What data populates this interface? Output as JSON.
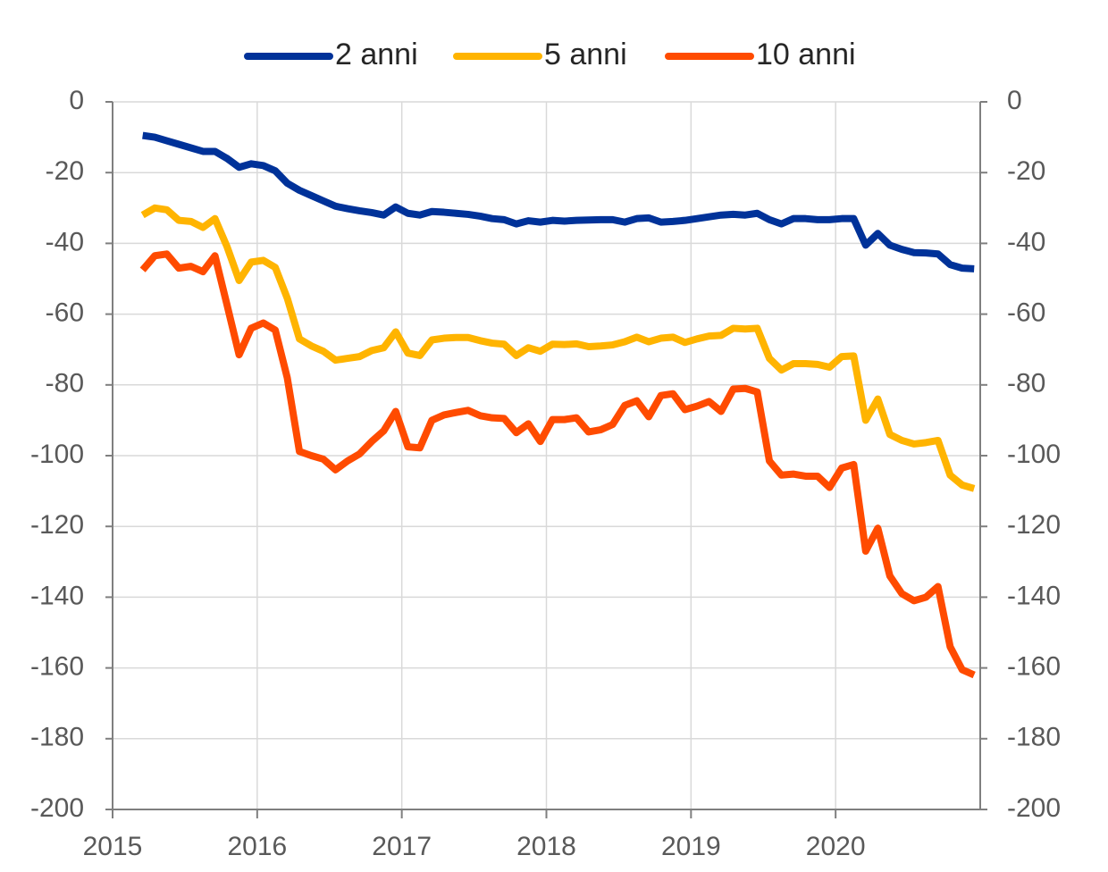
{
  "chart_data": {
    "type": "line",
    "x": [
      2015.208,
      2015.292,
      2015.375,
      2015.458,
      2015.542,
      2015.625,
      2015.708,
      2015.792,
      2015.875,
      2015.958,
      2016.042,
      2016.125,
      2016.208,
      2016.292,
      2016.375,
      2016.458,
      2016.542,
      2016.625,
      2016.708,
      2016.792,
      2016.875,
      2016.958,
      2017.042,
      2017.125,
      2017.208,
      2017.292,
      2017.375,
      2017.458,
      2017.542,
      2017.625,
      2017.708,
      2017.792,
      2017.875,
      2017.958,
      2018.042,
      2018.125,
      2018.208,
      2018.292,
      2018.375,
      2018.458,
      2018.542,
      2018.625,
      2018.708,
      2018.792,
      2018.875,
      2018.958,
      2019.042,
      2019.125,
      2019.208,
      2019.292,
      2019.375,
      2019.458,
      2019.542,
      2019.625,
      2019.708,
      2019.792,
      2019.875,
      2019.958,
      2020.042,
      2020.125,
      2020.208,
      2020.292,
      2020.375,
      2020.458,
      2020.542,
      2020.625,
      2020.708,
      2020.792,
      2020.875,
      2020.958
    ],
    "series": [
      {
        "name": "2 anni",
        "color": "#003299",
        "values": [
          -9.5,
          -10,
          -11,
          -12,
          -13,
          -14,
          -14,
          -16,
          -18.5,
          -17.5,
          -18,
          -19.5,
          -23,
          -25,
          -26.5,
          -28,
          -29.5,
          -30.2,
          -30.8,
          -31.3,
          -32,
          -29.7,
          -31.5,
          -32,
          -31,
          -31.2,
          -31.5,
          -31.8,
          -32.3,
          -33,
          -33.3,
          -34.5,
          -33.6,
          -34,
          -33.5,
          -33.7,
          -33.5,
          -33.4,
          -33.3,
          -33.3,
          -34,
          -33,
          -32.8,
          -34,
          -33.8,
          -33.5,
          -33,
          -32.5,
          -32,
          -31.8,
          -32,
          -31.5,
          -33.3,
          -34.5,
          -33,
          -33,
          -33.3,
          -33.3,
          -33,
          -33,
          -40.5,
          -37.2,
          -40.5,
          -41.7,
          -42.6,
          -42.7,
          -43,
          -46,
          -47,
          -47.2
        ]
      },
      {
        "name": "5 anni",
        "color": "#ffb400",
        "values": [
          -32,
          -30,
          -30.5,
          -33.5,
          -33.8,
          -35.5,
          -33,
          -41,
          -50.5,
          -45.3,
          -44.8,
          -46.8,
          -55.5,
          -67,
          -69,
          -70.5,
          -73,
          -72.5,
          -72,
          -70.3,
          -69.5,
          -65,
          -71,
          -71.7,
          -67.3,
          -66.8,
          -66.6,
          -66.6,
          -67.5,
          -68.2,
          -68.5,
          -71.7,
          -69.5,
          -70.5,
          -68.5,
          -68.6,
          -68.4,
          -69.2,
          -69,
          -68.7,
          -67.8,
          -66.5,
          -67.8,
          -66.8,
          -66.5,
          -68,
          -67,
          -66.2,
          -66,
          -64,
          -64.2,
          -64,
          -72.5,
          -75.8,
          -74,
          -74,
          -74.2,
          -75,
          -72,
          -71.8,
          -90,
          -84,
          -94,
          -95.7,
          -96.7,
          -96.3,
          -95.7,
          -105.5,
          -108.3,
          -109.3
        ]
      },
      {
        "name": "10 anni",
        "color": "#ff4b00",
        "values": [
          -47.5,
          -43.5,
          -43,
          -47,
          -46.5,
          -48,
          -43.5,
          -57.5,
          -71.5,
          -64,
          -62.5,
          -64.5,
          -78,
          -98.8,
          -100,
          -101,
          -104,
          -101.5,
          -99.5,
          -96,
          -93,
          -87.5,
          -97.5,
          -97.8,
          -90,
          -88.5,
          -87.8,
          -87.2,
          -88.7,
          -89.3,
          -89.5,
          -93.5,
          -91,
          -96,
          -89.8,
          -89.8,
          -89.3,
          -93.3,
          -92.7,
          -91.2,
          -85.8,
          -84.5,
          -89,
          -83,
          -82.5,
          -87,
          -86,
          -84.7,
          -87.5,
          -81.2,
          -81,
          -82,
          -101.5,
          -105.5,
          -105.2,
          -105.8,
          -105.8,
          -109,
          -103.5,
          -102.5,
          -127,
          -120.5,
          -134,
          -139,
          -141,
          -140,
          -137,
          -154,
          -160.5,
          -162
        ]
      }
    ],
    "xlim": [
      2015,
      2021
    ],
    "xticks": [
      2015,
      2016,
      2017,
      2018,
      2019,
      2020
    ],
    "ylim": [
      -200,
      0
    ],
    "yticks": [
      0,
      -20,
      -40,
      -60,
      -80,
      -100,
      -120,
      -140,
      -160,
      -180,
      -200
    ],
    "y2lim": [
      -200,
      0
    ],
    "y2ticks": [
      0,
      -20,
      -40,
      -60,
      -80,
      -100,
      -120,
      -140,
      -160,
      -180,
      -200
    ],
    "grid": true,
    "legend": "top"
  }
}
